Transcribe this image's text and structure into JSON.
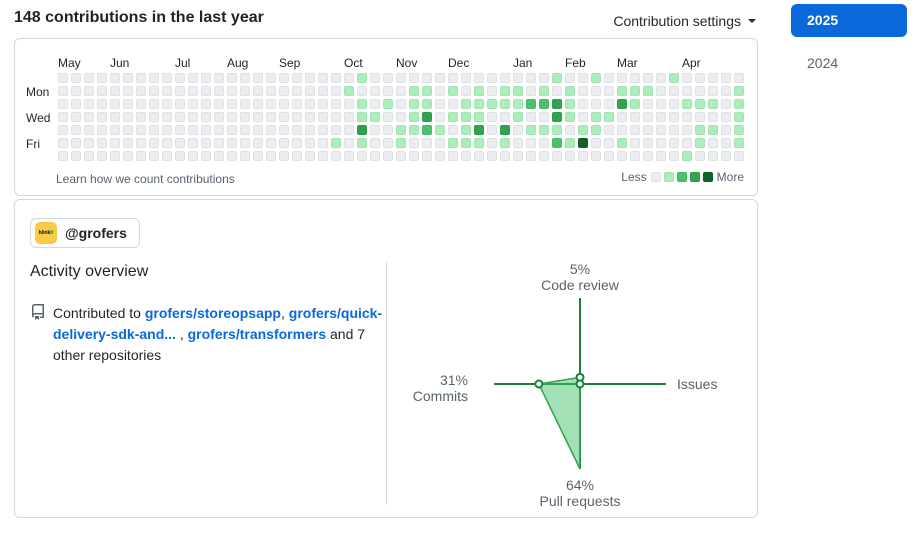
{
  "header": {
    "title": "148 contributions in the last year",
    "settings_label": "Contribution settings"
  },
  "years": [
    {
      "label": "2025",
      "active": true
    },
    {
      "label": "2024",
      "active": false
    }
  ],
  "calendar": {
    "months": [
      {
        "label": "May",
        "week": 0
      },
      {
        "label": "Jun",
        "week": 4
      },
      {
        "label": "Jul",
        "week": 9
      },
      {
        "label": "Aug",
        "week": 13
      },
      {
        "label": "Sep",
        "week": 17
      },
      {
        "label": "Oct",
        "week": 22
      },
      {
        "label": "Nov",
        "week": 26
      },
      {
        "label": "Dec",
        "week": 30
      },
      {
        "label": "Jan",
        "week": 35
      },
      {
        "label": "Feb",
        "week": 39
      },
      {
        "label": "Mar",
        "week": 43
      },
      {
        "label": "Apr",
        "week": 48
      }
    ],
    "day_labels": [
      {
        "label": "Mon",
        "row": 1
      },
      {
        "label": "Wed",
        "row": 3
      },
      {
        "label": "Fri",
        "row": 5
      }
    ],
    "palette": [
      "#ebedf0",
      "#aceebb",
      "#4ac26b",
      "#2da44e",
      "#116329"
    ],
    "grid": [
      "00000000000000000000000100000000000000100100000100000",
      "00000000000000000000001000011010101101010001110000001",
      "00000000000000000000000101011001111122310003100011101",
      "00000000000000000000000110013011100100310110000000001",
      "00000000000000000000000300112101303011101100000001101",
      "00000000000000000000010100100011101000214001000001001",
      "00000000000000000000000000000000000000000000000010000"
    ],
    "footer_link": "Learn how we count contributions",
    "legend": {
      "less": "Less",
      "more": "More",
      "levels": [
        0,
        1,
        2,
        3,
        4
      ]
    }
  },
  "org_chip": {
    "handle": "@grofers",
    "logo_text_black": "blink",
    "logo_text_green": "it"
  },
  "activity": {
    "heading": "Activity overview",
    "sentence_parts": [
      {
        "type": "text",
        "value": "Contributed to "
      },
      {
        "type": "link",
        "value": "grofers/storeopsapp"
      },
      {
        "type": "text",
        "value": ", "
      },
      {
        "type": "link",
        "value": "grofers/quick-delivery-sdk-and... "
      },
      {
        "type": "text",
        "value": ", "
      },
      {
        "type": "link",
        "value": "grofers/transformers"
      },
      {
        "type": "text",
        "value": " and 7 other repositories"
      }
    ]
  },
  "radar": {
    "axes": [
      {
        "label": "Code review",
        "pct": 5,
        "display": "5%"
      },
      {
        "label": "Commits",
        "pct": 31,
        "display": "31%"
      },
      {
        "label": "Issues",
        "pct": 0,
        "display": ""
      },
      {
        "label": "Pull requests",
        "pct": 64,
        "display": "64%"
      }
    ],
    "colors": {
      "axis": "#1a7f37",
      "fill": "rgba(74,194,107,0.5)",
      "point_fill": "#ffffff",
      "accent_blue": "#0969da"
    }
  }
}
